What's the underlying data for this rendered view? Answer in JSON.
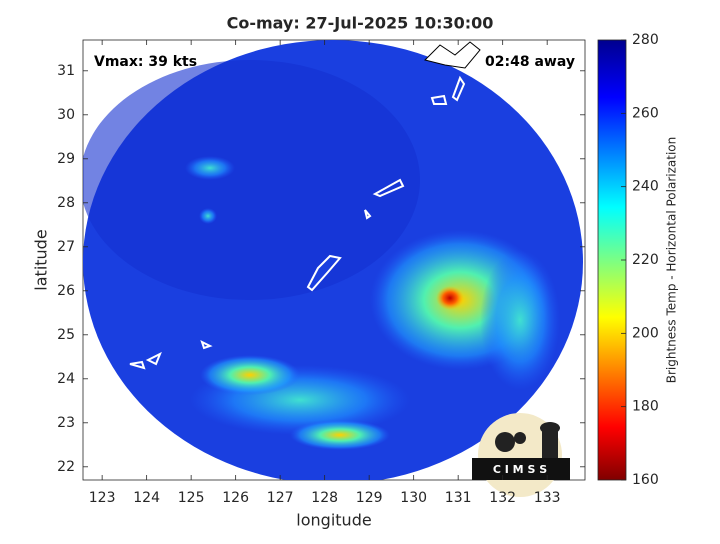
{
  "chart_data": {
    "type": "image",
    "title": "Co-may: 27-Jul-2025 10:30:00",
    "annotations": [
      "Vmax: 39 kts",
      "02:48 away"
    ],
    "x_label": "longitude",
    "y_label": "latitude",
    "xlim": [
      122.57,
      133.85
    ],
    "xticks": [
      123,
      124,
      125,
      126,
      127,
      128,
      129,
      130,
      131,
      132,
      133
    ],
    "ylim": [
      21.7,
      31.7
    ],
    "yticks": [
      22,
      23,
      24,
      25,
      26,
      27,
      28,
      29,
      30,
      31
    ],
    "colorbar": {
      "label": "Brightness Temp - Horizontal Polarization",
      "lim": [
        160,
        280
      ],
      "ticks": [
        160,
        180,
        200,
        220,
        240,
        260,
        280
      ],
      "colormap": "jet"
    },
    "logo": "C I M S S"
  }
}
